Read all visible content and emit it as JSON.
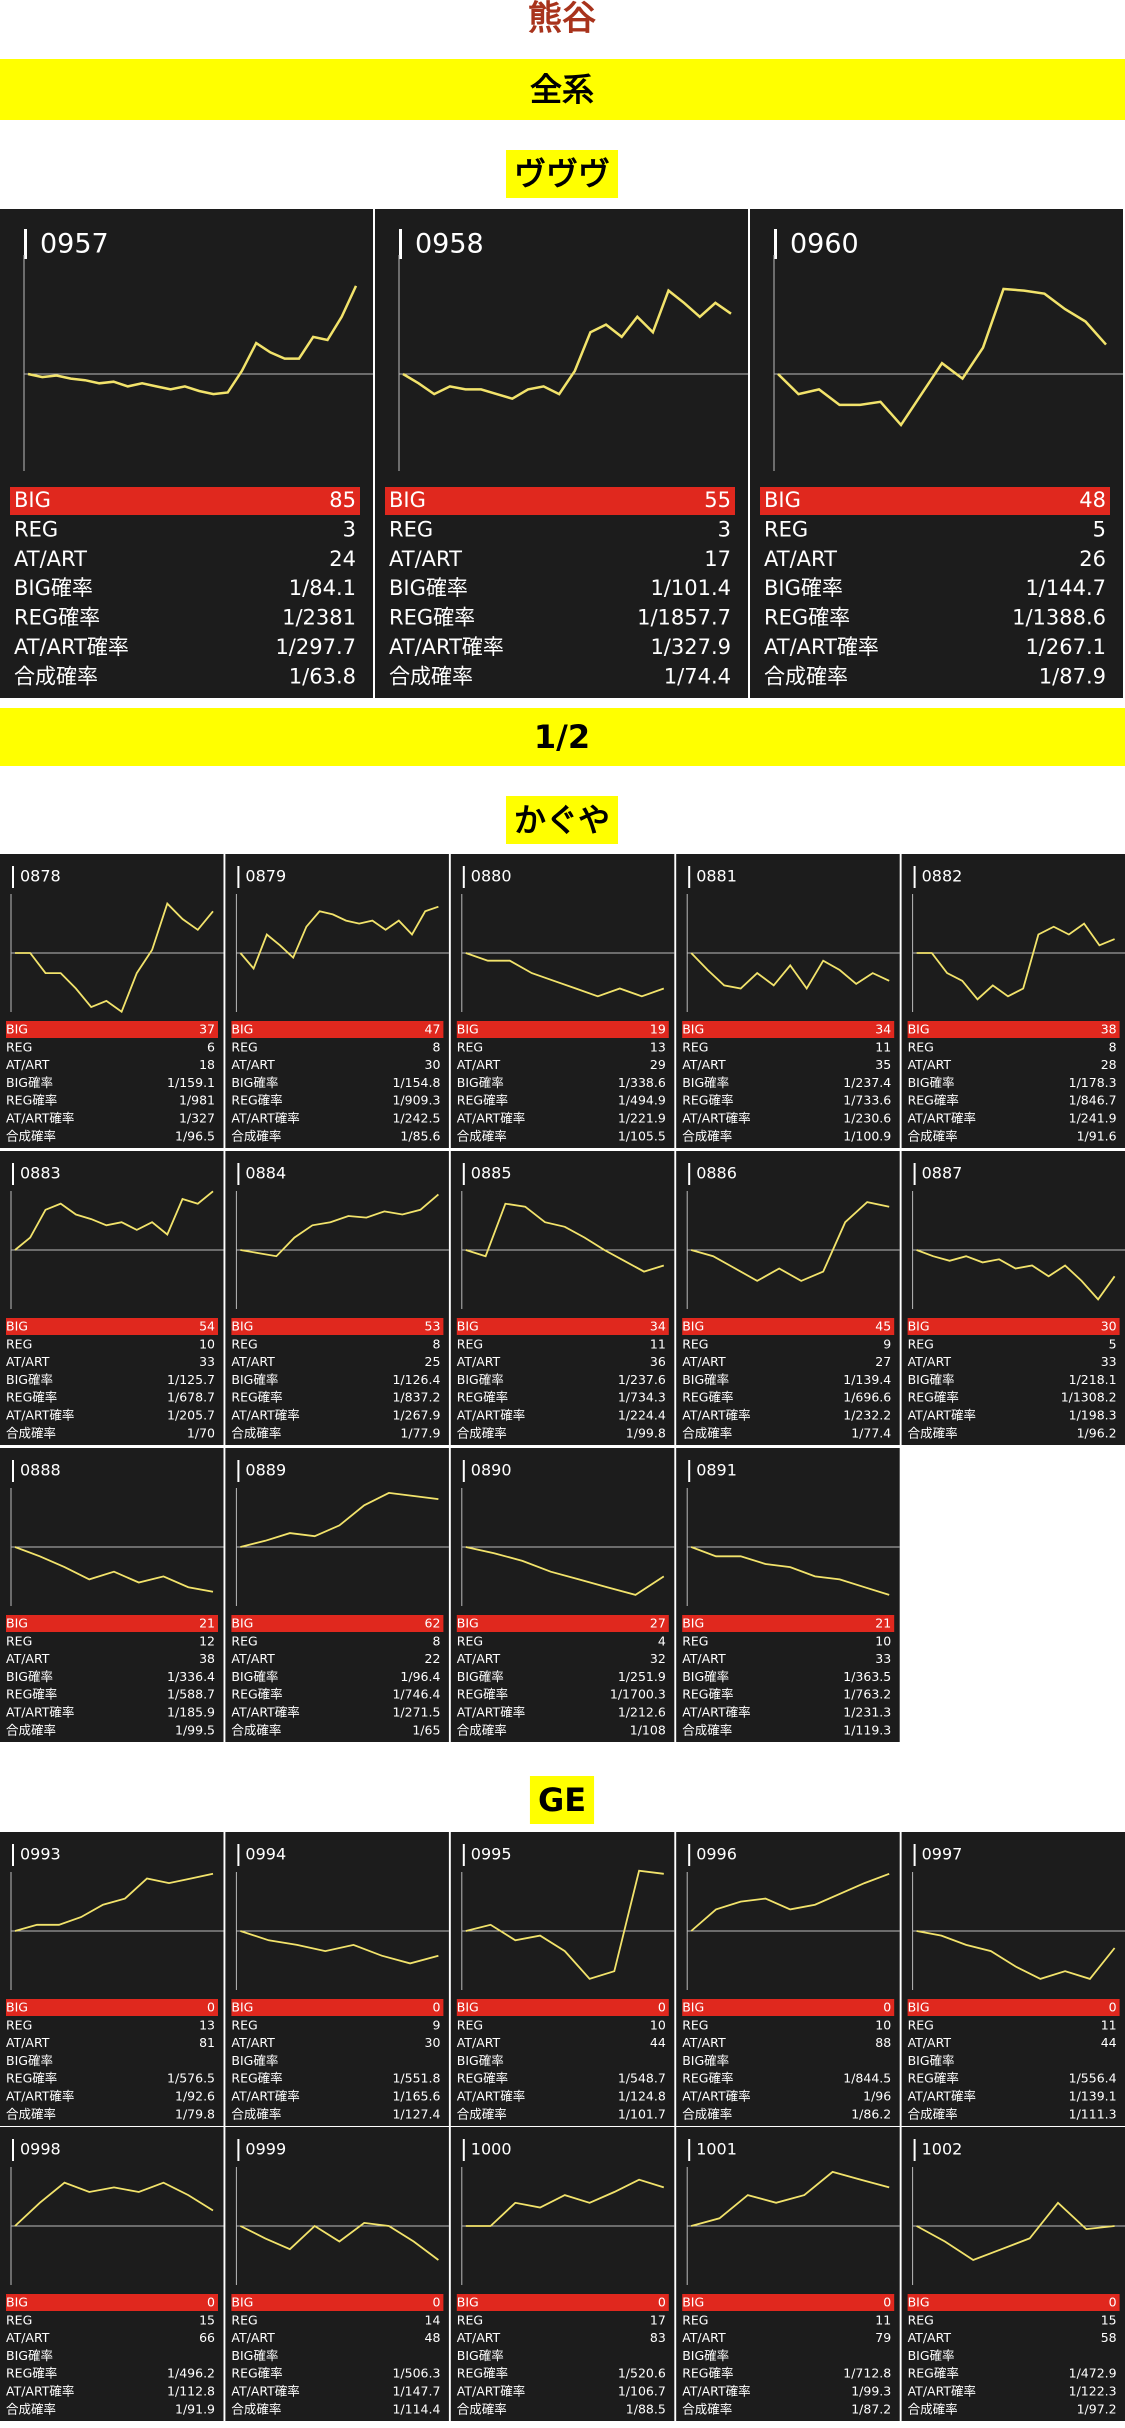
{
  "header": {
    "title": "熊谷"
  },
  "groups": [
    {
      "banner": "全系",
      "sections": [
        {
          "label": "ヴヴヴ",
          "stat_labels": [
            "BIG",
            "REG",
            "AT/ART",
            "BIG確率",
            "REG確率",
            "AT/ART確率",
            "合成確率"
          ],
          "machines": [
            {
              "number": "0957",
              "stats": [
                85,
                3,
                24,
                "1/84.1",
                "1/2381",
                "1/297.7",
                "1/63.8"
              ],
              "graph": [
                0,
                -2,
                -1,
                -3,
                -4,
                -6,
                -5,
                -8,
                -6,
                -8,
                -10,
                -8,
                -11,
                -13,
                -12,
                2,
                20,
                14,
                10,
                10,
                24,
                22,
                37,
                57
              ]
            },
            {
              "number": "0958",
              "stats": [
                55,
                3,
                17,
                "1/101.4",
                "1/1857.7",
                "1/327.9",
                "1/74.4"
              ],
              "graph": [
                0,
                -6,
                -13,
                -8,
                -10,
                -10,
                -13,
                -16,
                -10,
                -8,
                -13,
                2,
                27,
                32,
                24,
                37,
                27,
                54,
                46,
                37,
                46,
                39
              ]
            },
            {
              "number": "0960",
              "stats": [
                48,
                5,
                26,
                "1/144.7",
                "1/1388.6",
                "1/267.1",
                "1/87.9"
              ],
              "graph": [
                0,
                -13,
                -10,
                -20,
                -20,
                -18,
                -33,
                -13,
                7,
                -3,
                17,
                55,
                54,
                52,
                42,
                34,
                19
              ]
            }
          ]
        }
      ]
    },
    {
      "banner": "1/2",
      "sections": [
        {
          "label": "かぐや",
          "stat_labels": [
            "BIG",
            "REG",
            "AT/ART",
            "BIG確率",
            "REG確率",
            "AT/ART確率",
            "合成確率"
          ],
          "machines": [
            {
              "number": "0878",
              "stats": [
                37,
                6,
                18,
                "1/159.1",
                "1/981",
                "1/327",
                "1/96.5"
              ],
              "graph": [
                0,
                0,
                -13,
                -13,
                -23,
                -35,
                -31,
                -38,
                -13,
                2,
                32,
                22,
                15,
                27
              ]
            },
            {
              "number": "0879",
              "stats": [
                47,
                8,
                30,
                "1/154.8",
                "1/909.3",
                "1/242.5",
                "1/85.6"
              ],
              "graph": [
                0,
                -10,
                12,
                5,
                -3,
                17,
                27,
                25,
                21,
                19,
                21,
                15,
                21,
                12,
                27,
                30
              ]
            },
            {
              "number": "0880",
              "stats": [
                19,
                13,
                29,
                "1/338.6",
                "1/494.9",
                "1/221.9",
                "1/105.5"
              ],
              "graph": [
                0,
                -5,
                -5,
                -13,
                -18,
                -23,
                -28,
                -23,
                -28,
                -23
              ]
            },
            {
              "number": "0881",
              "stats": [
                34,
                11,
                35,
                "1/237.4",
                "1/733.6",
                "1/230.6",
                "1/100.9"
              ],
              "graph": [
                0,
                -11,
                -21,
                -23,
                -13,
                -21,
                -8,
                -23,
                -5,
                -11,
                -20,
                -13,
                -18
              ]
            },
            {
              "number": "0882",
              "stats": [
                38,
                8,
                28,
                "1/178.3",
                "1/846.7",
                "1/241.9",
                "1/91.6"
              ],
              "graph": [
                0,
                0,
                -13,
                -18,
                -30,
                -21,
                -28,
                -23,
                12,
                17,
                12,
                19,
                5,
                9
              ]
            },
            {
              "number": "0883",
              "stats": [
                54,
                10,
                33,
                "1/125.7",
                "1/678.7",
                "1/205.7",
                "1/70"
              ],
              "graph": [
                0,
                8,
                26,
                30,
                23,
                20,
                16,
                18,
                13,
                18,
                10,
                33,
                30,
                38
              ]
            },
            {
              "number": "0884",
              "stats": [
                53,
                8,
                25,
                "1/126.4",
                "1/837.2",
                "1/267.9",
                "1/77.9"
              ],
              "graph": [
                0,
                -2,
                -4,
                8,
                16,
                18,
                22,
                21,
                25,
                23,
                26,
                36
              ]
            },
            {
              "number": "0885",
              "stats": [
                34,
                11,
                36,
                "1/237.6",
                "1/734.3",
                "1/224.4",
                "1/99.8"
              ],
              "graph": [
                0,
                -4,
                30,
                28,
                18,
                15,
                8,
                0,
                -7,
                -14,
                -10
              ]
            },
            {
              "number": "0886",
              "stats": [
                45,
                9,
                27,
                "1/139.4",
                "1/696.6",
                "1/232.2",
                "1/77.4"
              ],
              "graph": [
                0,
                -4,
                -12,
                -20,
                -12,
                -20,
                -14,
                18,
                31,
                28
              ]
            },
            {
              "number": "0887",
              "stats": [
                30,
                5,
                33,
                "1/218.1",
                "1/1308.2",
                "1/198.3",
                "1/96.2"
              ],
              "graph": [
                0,
                -4,
                -7,
                -4,
                -8,
                -6,
                -12,
                -10,
                -17,
                -10,
                -20,
                -32,
                -17
              ]
            },
            {
              "number": "0888",
              "stats": [
                21,
                12,
                38,
                "1/336.4",
                "1/588.7",
                "1/185.9",
                "1/99.5"
              ],
              "graph": [
                0,
                -6,
                -13,
                -21,
                -16,
                -23,
                -19,
                -26,
                -29
              ]
            },
            {
              "number": "0889",
              "stats": [
                62,
                8,
                22,
                "1/96.4",
                "1/746.4",
                "1/271.5",
                "1/65"
              ],
              "graph": [
                0,
                4,
                9,
                7,
                14,
                27,
                35,
                33,
                31
              ]
            },
            {
              "number": "0890",
              "stats": [
                27,
                4,
                32,
                "1/251.9",
                "1/1700.3",
                "1/212.6",
                "1/108"
              ],
              "graph": [
                0,
                -4,
                -9,
                -16,
                -21,
                -26,
                -31,
                -19
              ]
            },
            {
              "number": "0891",
              "stats": [
                21,
                10,
                33,
                "1/363.5",
                "1/763.2",
                "1/231.3",
                "1/119.3"
              ],
              "graph": [
                0,
                -6,
                -6,
                -11,
                -13,
                -19,
                -21,
                -26,
                -31
              ]
            }
          ]
        },
        {
          "label": "GE",
          "stat_labels": [
            "BIG",
            "REG",
            "AT/ART",
            "BIG確率",
            "REG確率",
            "AT/ART確率",
            "合成確率"
          ],
          "machines": [
            {
              "number": "0993",
              "stats": [
                0,
                13,
                81,
                null,
                "1/576.5",
                "1/92.6",
                "1/79.8"
              ],
              "graph": [
                0,
                4,
                4,
                9,
                17,
                21,
                34,
                31,
                34,
                37
              ]
            },
            {
              "number": "0994",
              "stats": [
                0,
                9,
                30,
                null,
                "1/551.8",
                "1/165.6",
                "1/127.4"
              ],
              "graph": [
                0,
                -6,
                -9,
                -13,
                -9,
                -16,
                -21,
                -16
              ]
            },
            {
              "number": "0995",
              "stats": [
                0,
                10,
                44,
                null,
                "1/548.7",
                "1/124.8",
                "1/101.7"
              ],
              "graph": [
                0,
                4,
                -6,
                -3,
                -13,
                -31,
                -26,
                39,
                37
              ]
            },
            {
              "number": "0996",
              "stats": [
                0,
                10,
                88,
                null,
                "1/844.5",
                "1/96",
                "1/86.2"
              ],
              "graph": [
                0,
                14,
                19,
                21,
                14,
                17,
                24,
                31,
                37
              ]
            },
            {
              "number": "0997",
              "stats": [
                0,
                11,
                44,
                null,
                "1/556.4",
                "1/139.1",
                "1/111.3"
              ],
              "graph": [
                0,
                -3,
                -9,
                -13,
                -23,
                -31,
                -26,
                -31,
                -11
              ]
            },
            {
              "number": "0998",
              "stats": [
                0,
                15,
                66,
                null,
                "1/496.2",
                "1/112.8",
                "1/91.9"
              ],
              "graph": [
                0,
                15,
                28,
                22,
                25,
                22,
                28,
                20,
                10
              ]
            },
            {
              "number": "0999",
              "stats": [
                0,
                14,
                48,
                null,
                "1/506.3",
                "1/147.7",
                "1/114.4"
              ],
              "graph": [
                0,
                -8,
                -15,
                0,
                -10,
                2,
                0,
                -10,
                -22
              ]
            },
            {
              "number": "1000",
              "stats": [
                0,
                17,
                83,
                null,
                "1/520.6",
                "1/106.7",
                "1/88.5"
              ],
              "graph": [
                0,
                0,
                15,
                12,
                20,
                15,
                22,
                30,
                25
              ]
            },
            {
              "number": "1001",
              "stats": [
                0,
                11,
                79,
                null,
                "1/712.8",
                "1/99.3",
                "1/87.2"
              ],
              "graph": [
                0,
                5,
                20,
                15,
                20,
                35,
                30,
                25
              ]
            },
            {
              "number": "1002",
              "stats": [
                0,
                15,
                58,
                null,
                "1/472.9",
                "1/122.3",
                "1/97.2"
              ],
              "graph": [
                0,
                -10,
                -22,
                -15,
                -8,
                15,
                -2,
                0
              ]
            }
          ]
        }
      ]
    }
  ]
}
